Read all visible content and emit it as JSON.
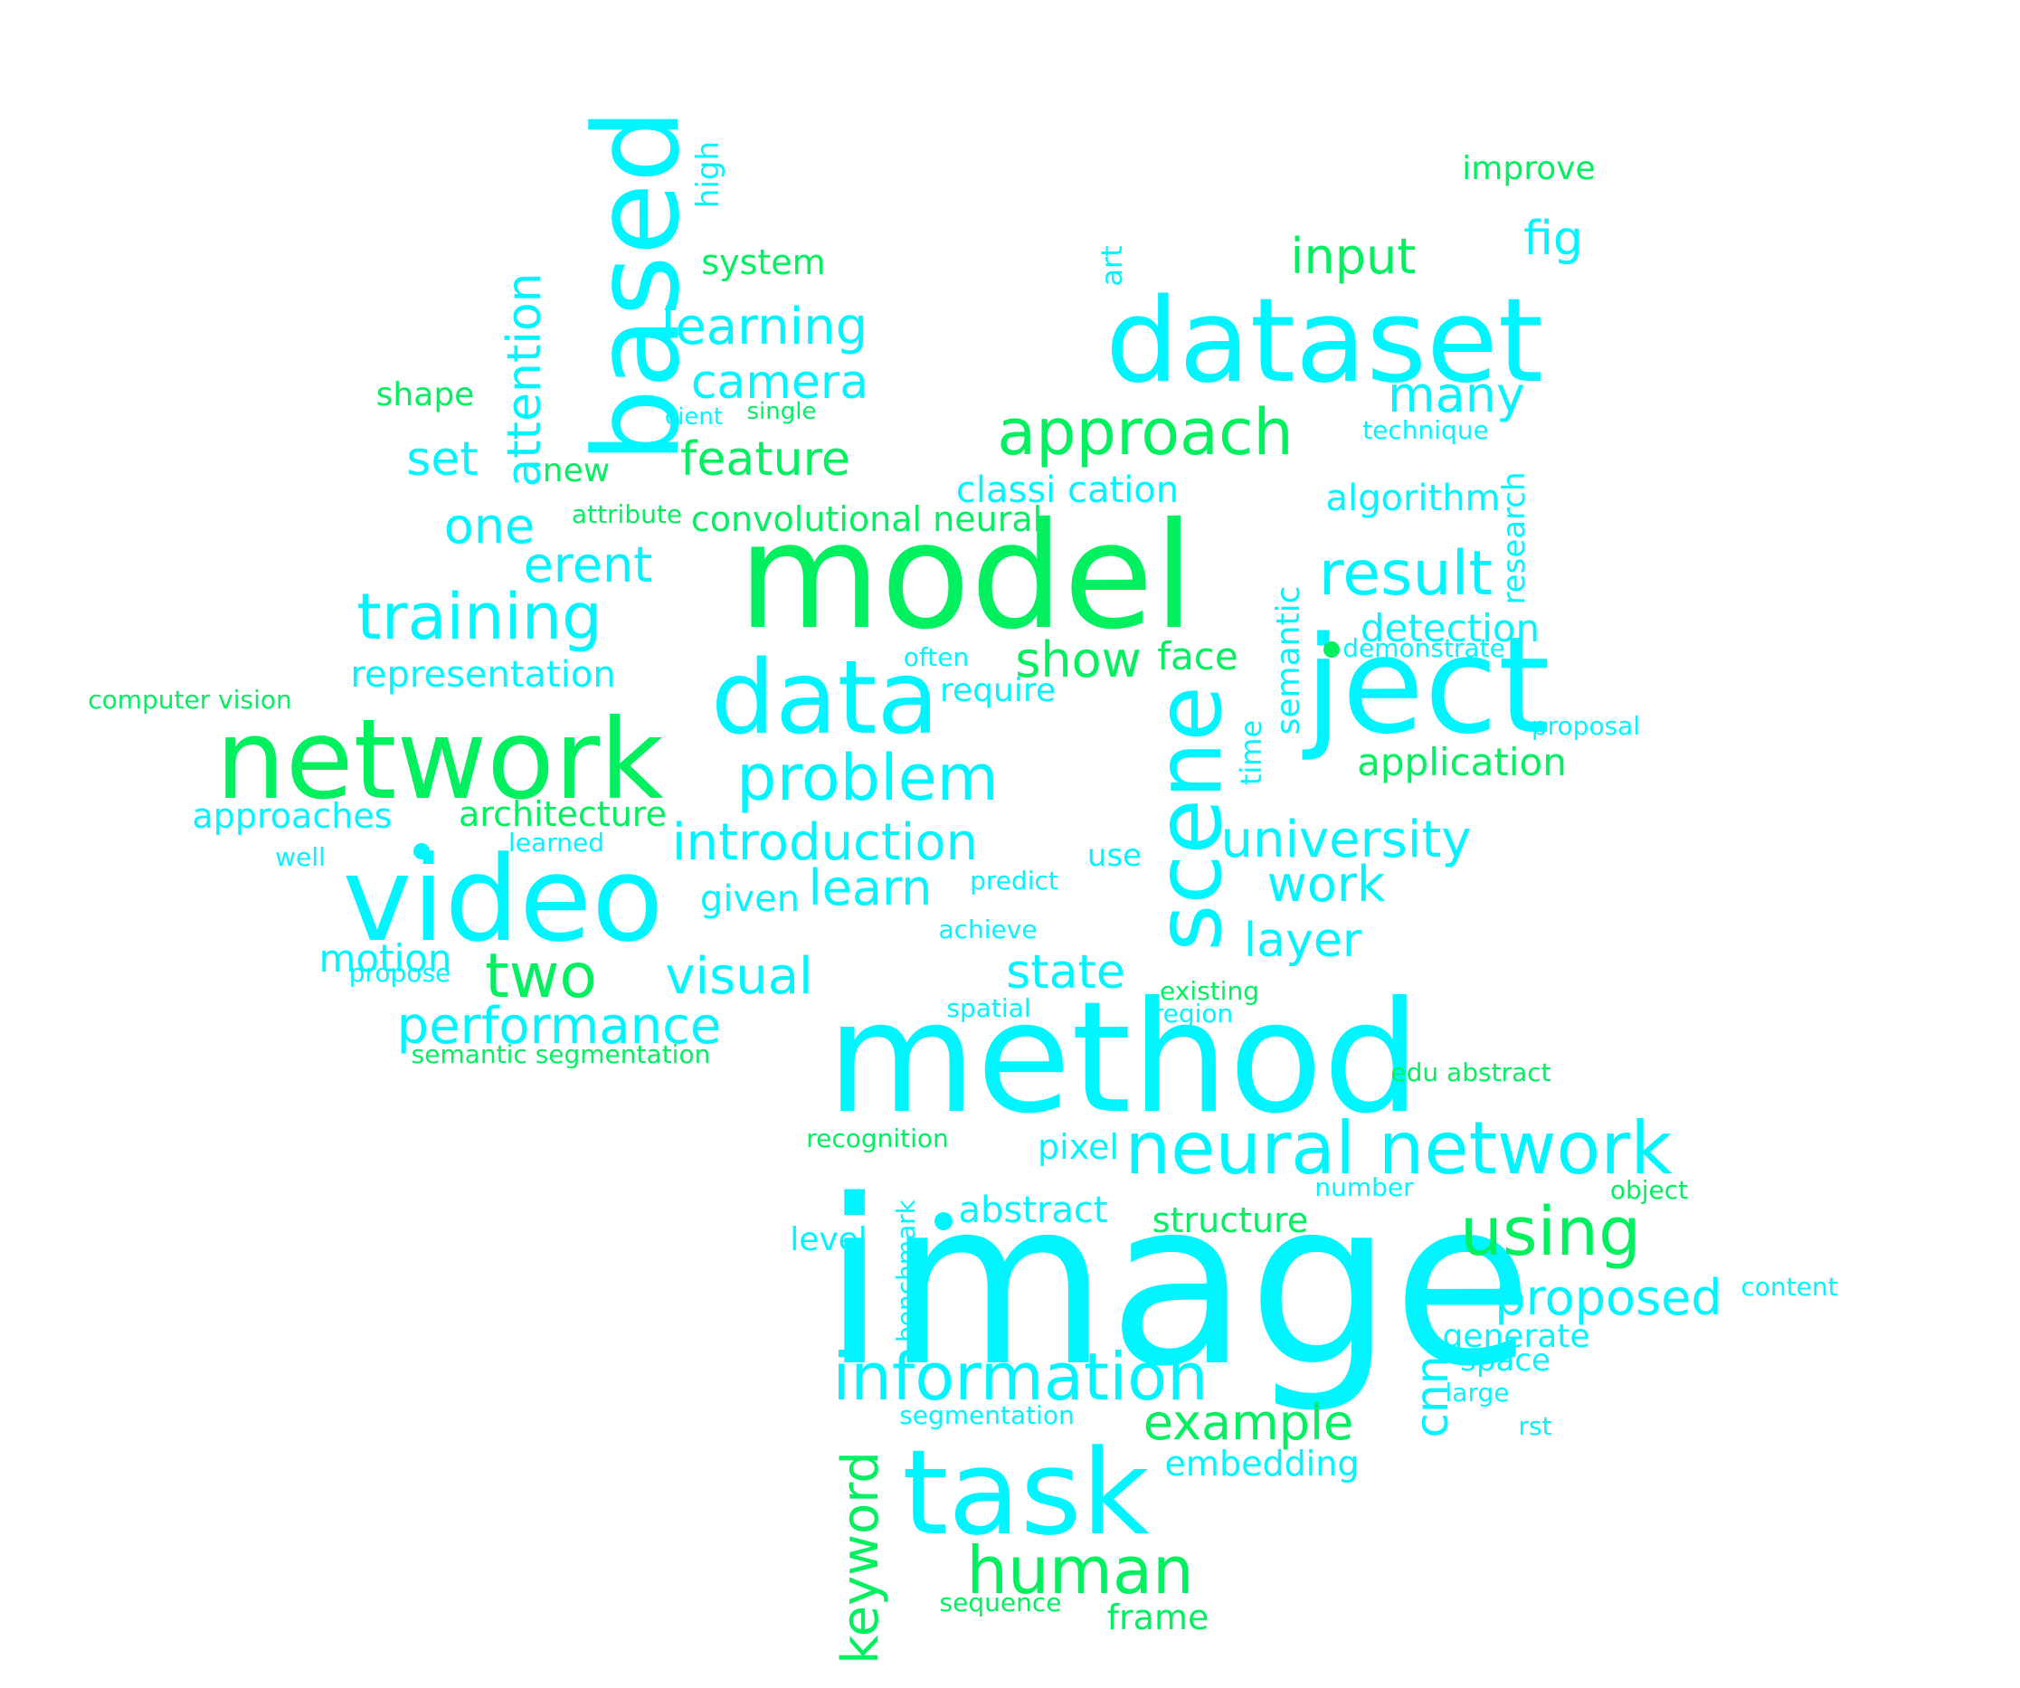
{
  "colors": {
    "cyan": "#00f5ff",
    "green": "#00f060"
  },
  "words": [
    {
      "text": "image",
      "color": "cyan"
    },
    {
      "text": "model",
      "color": "green"
    },
    {
      "text": "method",
      "color": "cyan"
    },
    {
      "text": "network",
      "color": "green"
    },
    {
      "text": "video",
      "color": "cyan"
    },
    {
      "text": "dataset",
      "color": "cyan"
    },
    {
      "text": "ject",
      "color": "cyan"
    },
    {
      "text": "task",
      "color": "cyan"
    },
    {
      "text": "data",
      "color": "cyan"
    },
    {
      "text": "based",
      "color": "cyan"
    },
    {
      "text": "scene",
      "color": "cyan"
    },
    {
      "text": "information",
      "color": "cyan"
    },
    {
      "text": "neural network",
      "color": "cyan"
    },
    {
      "text": "human",
      "color": "green"
    },
    {
      "text": "approach",
      "color": "green"
    },
    {
      "text": "problem",
      "color": "cyan"
    },
    {
      "text": "training",
      "color": "cyan"
    },
    {
      "text": "using",
      "color": "green"
    },
    {
      "text": "two",
      "color": "green"
    },
    {
      "text": "result",
      "color": "cyan"
    },
    {
      "text": "performance",
      "color": "cyan"
    },
    {
      "text": "introduction",
      "color": "cyan"
    },
    {
      "text": "proposed",
      "color": "cyan"
    },
    {
      "text": "university",
      "color": "cyan"
    },
    {
      "text": "example",
      "color": "green"
    },
    {
      "text": "keyword",
      "color": "green"
    },
    {
      "text": "input",
      "color": "green"
    },
    {
      "text": "learning",
      "color": "cyan"
    },
    {
      "text": "attention",
      "color": "cyan"
    },
    {
      "text": "many",
      "color": "cyan"
    },
    {
      "text": "feature",
      "color": "green"
    },
    {
      "text": "camera",
      "color": "cyan"
    },
    {
      "text": "visual",
      "color": "cyan"
    },
    {
      "text": "learn",
      "color": "cyan"
    },
    {
      "text": "show",
      "color": "green"
    },
    {
      "text": "layer",
      "color": "cyan"
    },
    {
      "text": "work",
      "color": "cyan"
    },
    {
      "text": "state",
      "color": "cyan"
    },
    {
      "text": "erent",
      "color": "cyan"
    },
    {
      "text": "one",
      "color": "cyan"
    },
    {
      "text": "set",
      "color": "cyan"
    },
    {
      "text": "fig",
      "color": "cyan"
    },
    {
      "text": "cnn",
      "color": "cyan"
    },
    {
      "text": "detection",
      "color": "cyan"
    },
    {
      "text": "application",
      "color": "green"
    },
    {
      "text": "classi cation",
      "color": "cyan"
    },
    {
      "text": "algorithm",
      "color": "cyan"
    },
    {
      "text": "convolutional neural",
      "color": "green"
    },
    {
      "text": "representation",
      "color": "cyan"
    },
    {
      "text": "architecture",
      "color": "green"
    },
    {
      "text": "approaches",
      "color": "cyan"
    },
    {
      "text": "motion",
      "color": "cyan"
    },
    {
      "text": "given",
      "color": "cyan"
    },
    {
      "text": "face",
      "color": "green"
    },
    {
      "text": "semantic",
      "color": "cyan"
    },
    {
      "text": "research",
      "color": "cyan"
    },
    {
      "text": "embedding",
      "color": "cyan"
    },
    {
      "text": "structure",
      "color": "green"
    },
    {
      "text": "abstract",
      "color": "cyan"
    },
    {
      "text": "generate",
      "color": "cyan"
    },
    {
      "text": "space",
      "color": "cyan"
    },
    {
      "text": "frame",
      "color": "green"
    },
    {
      "text": "pixel",
      "color": "cyan"
    },
    {
      "text": "system",
      "color": "green"
    },
    {
      "text": "improve",
      "color": "green"
    },
    {
      "text": "shape",
      "color": "green"
    },
    {
      "text": "high",
      "color": "cyan"
    },
    {
      "text": "new",
      "color": "green"
    },
    {
      "text": "level",
      "color": "cyan"
    },
    {
      "text": "require",
      "color": "cyan"
    },
    {
      "text": "use",
      "color": "cyan"
    },
    {
      "text": "time",
      "color": "cyan"
    },
    {
      "text": "art",
      "color": "cyan"
    },
    {
      "text": "technique",
      "color": "cyan"
    },
    {
      "text": "demonstrate",
      "color": "cyan"
    },
    {
      "text": "proposal",
      "color": "cyan"
    },
    {
      "text": "computer vision",
      "color": "green"
    },
    {
      "text": "well",
      "color": "cyan"
    },
    {
      "text": "learned",
      "color": "cyan"
    },
    {
      "text": "predict",
      "color": "cyan"
    },
    {
      "text": "achieve",
      "color": "cyan"
    },
    {
      "text": "often",
      "color": "cyan"
    },
    {
      "text": "spatial",
      "color": "cyan"
    },
    {
      "text": "existing",
      "color": "green"
    },
    {
      "text": "region",
      "color": "cyan"
    },
    {
      "text": "edu abstract",
      "color": "green"
    },
    {
      "text": "recognition",
      "color": "green"
    },
    {
      "text": "number",
      "color": "cyan"
    },
    {
      "text": "object",
      "color": "green"
    },
    {
      "text": "content",
      "color": "cyan"
    },
    {
      "text": "large",
      "color": "cyan"
    },
    {
      "text": "rst",
      "color": "cyan"
    },
    {
      "text": "segmentation",
      "color": "cyan"
    },
    {
      "text": "sequence",
      "color": "green"
    },
    {
      "text": "benchmark",
      "color": "cyan"
    },
    {
      "text": "semantic segmentation",
      "color": "green"
    },
    {
      "text": "propose",
      "color": "cyan"
    },
    {
      "text": "attribute",
      "color": "green"
    },
    {
      "text": "cient",
      "color": "cyan"
    },
    {
      "text": "single",
      "color": "green"
    }
  ],
  "dots": [
    {
      "color": "cyan"
    },
    {
      "color": "green"
    },
    {
      "color": "cyan"
    }
  ]
}
